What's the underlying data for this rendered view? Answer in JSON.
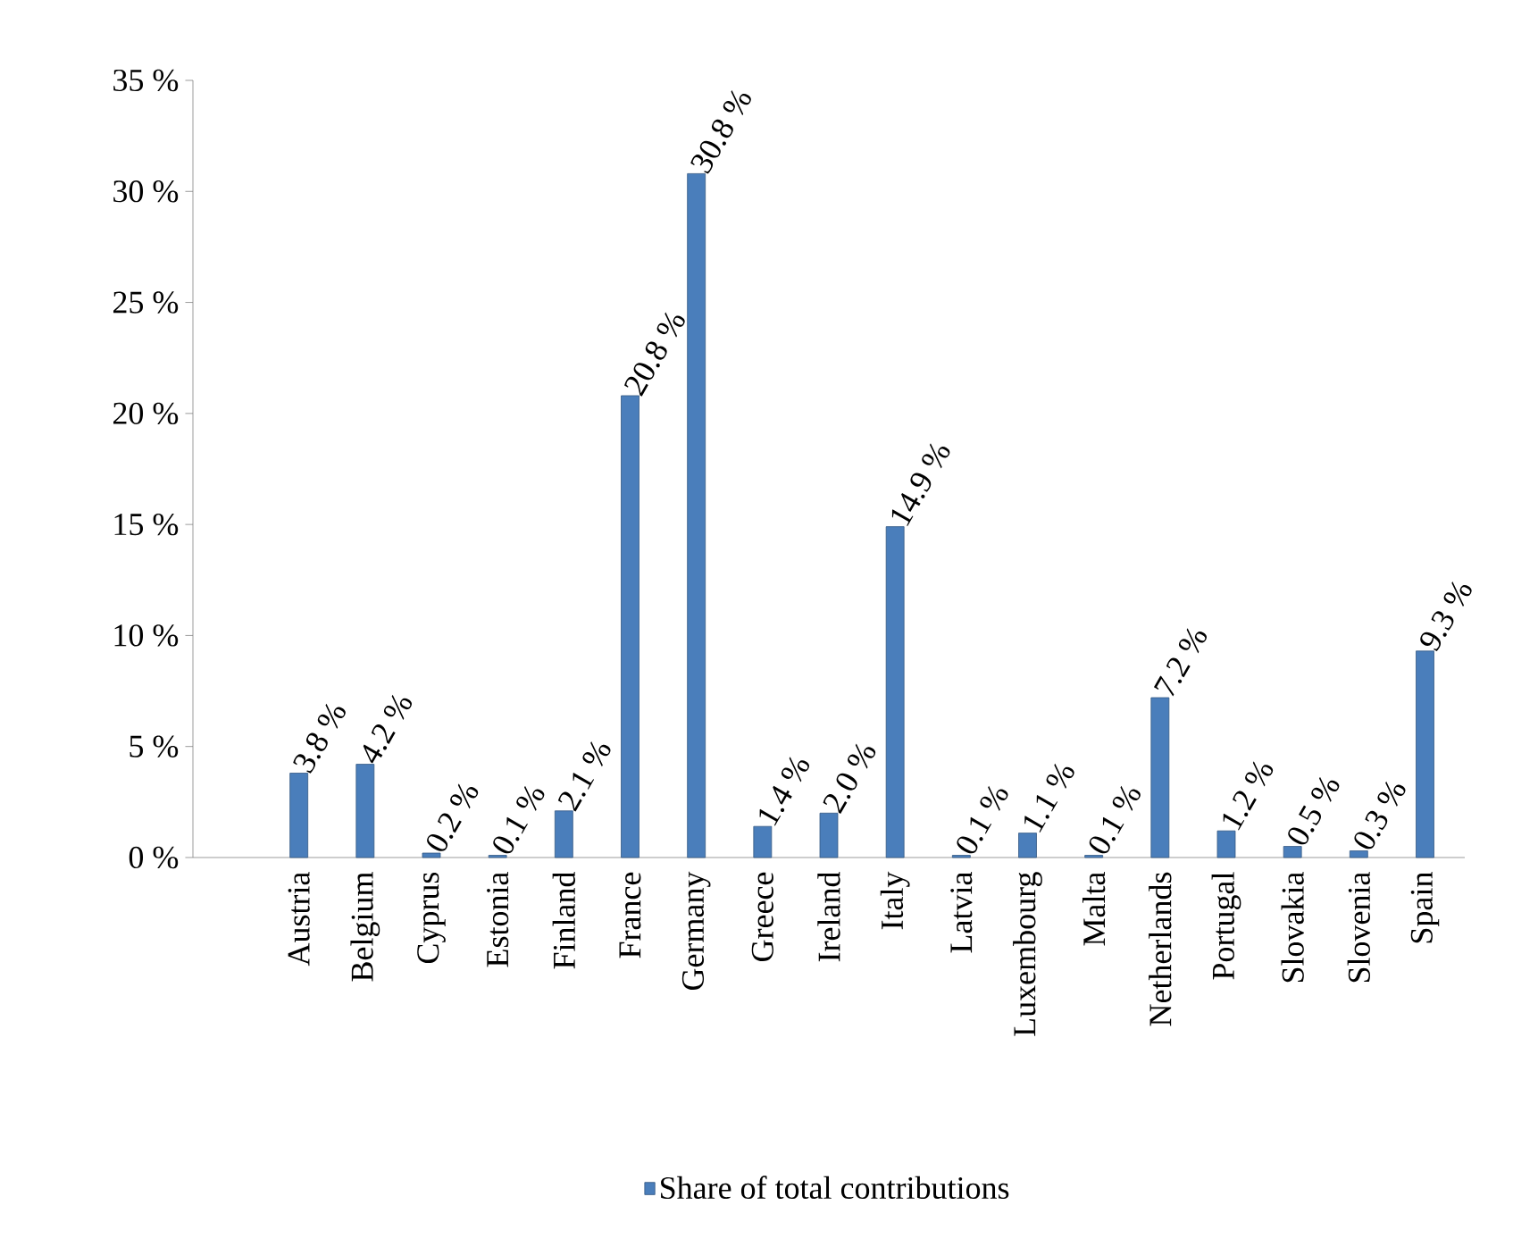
{
  "chart_data": {
    "type": "bar",
    "categories": [
      "Austria",
      "Belgium",
      "Cyprus",
      "Estonia",
      "Finland",
      "France",
      "Germany",
      "Greece",
      "Ireland",
      "Italy",
      "Latvia",
      "Luxembourg",
      "Malta",
      "Netherlands",
      "Portugal",
      "Slovakia",
      "Slovenia",
      "Spain"
    ],
    "series": [
      {
        "name": "Share of total contributions",
        "color": "#4a7ebb",
        "values": [
          3.8,
          4.2,
          0.2,
          0.1,
          2.1,
          20.8,
          30.8,
          1.4,
          2.0,
          14.9,
          0.1,
          1.1,
          0.1,
          7.2,
          1.2,
          0.5,
          0.3,
          9.3
        ],
        "value_labels": [
          "3.8 %",
          "4.2 %",
          "0.2 %",
          "0.1 %",
          "2.1 %",
          "20.8 %",
          "30.8 %",
          "1.4 %",
          "2.0 %",
          "14.9 %",
          "0.1 %",
          "1.1 %",
          "0.1 %",
          "7.2 %",
          "1.2 %",
          "0.5 %",
          "0.3 %",
          "9.3 %"
        ]
      }
    ],
    "ylim": [
      0,
      35
    ],
    "yticks": [
      {
        "value": 0,
        "label": "0 %"
      },
      {
        "value": 5,
        "label": "5 %"
      },
      {
        "value": 10,
        "label": "10 %"
      },
      {
        "value": 15,
        "label": "15 %"
      },
      {
        "value": 20,
        "label": "20 %"
      },
      {
        "value": 25,
        "label": "25 %"
      },
      {
        "value": 30,
        "label": "30 %"
      },
      {
        "value": 35,
        "label": "35 %"
      }
    ],
    "legend": "bottom"
  }
}
